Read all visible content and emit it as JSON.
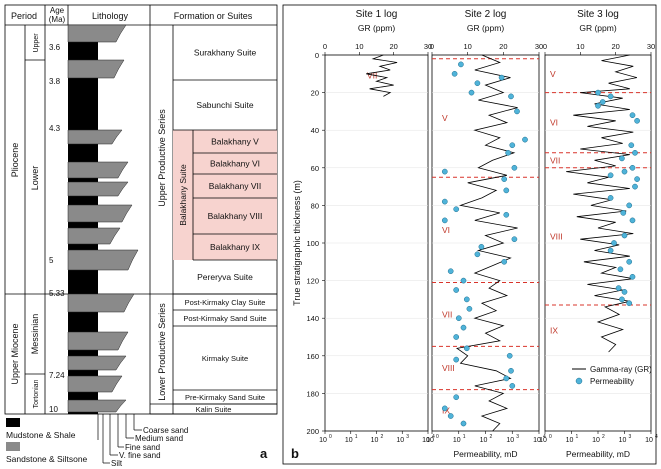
{
  "panel_a": {
    "label": "a",
    "headers": {
      "period": "Period",
      "age": "Age\n(Ma)",
      "lithology": "Lithology",
      "formation": "Formation or Suites"
    },
    "periods": {
      "pliocene": "Pliocene",
      "upper_miocene": "Upper Miocene"
    },
    "epochs": {
      "upper": "Upper",
      "lower": "Lower",
      "messinian": "Messinian",
      "tortonian": "Tortonian"
    },
    "ages": [
      "3.6",
      "3.8",
      "4.3",
      "5",
      "5.33",
      "7.24",
      "10"
    ],
    "series": {
      "upper": "Upper Productive Series",
      "lower": "Lower Productive Series",
      "balakhany": "Balakhany Suite"
    },
    "suites": [
      "Surakhany Suite",
      "Sabunchi Suite",
      "Balakhany V",
      "Balakhany VI",
      "Balakhany VII",
      "Balakhany VIII",
      "Balakhany IX",
      "Pereryva Suite",
      "Post-Kirmaky Clay Suite",
      "Post-Kirmaky Sand Suite",
      "Kirmaky Suite",
      "Pre-Kirmaky Sand Suite",
      "Kalin Suite"
    ],
    "legend": {
      "mudstone": "Mudstone & Shale",
      "sandstone": "Sandstone & Siltsone"
    },
    "grain_labels": [
      "Coarse sand",
      "Medium sand",
      "Fine sand",
      "V. fine sand",
      "Silt"
    ],
    "colors": {
      "mud": "#000000",
      "sand": "#8a8a8a",
      "highlight": "#f7d3cf"
    }
  },
  "panel_b": {
    "label": "b",
    "site_titles": [
      "Site 1 log",
      "Site 2 log",
      "Site 3 log"
    ],
    "gr_label": "GR (ppm)",
    "perm_label": "Permeability, mD",
    "y_label": "True stratigraphic thickness (m)",
    "legend": {
      "gr": "Gamma-ray (GR)",
      "perm": "Permeability"
    },
    "gr_ticks": [
      "0",
      "10",
      "20",
      "30"
    ],
    "perm_ticks": [
      "10",
      "10",
      "10",
      "10",
      "10"
    ],
    "perm_exps": [
      "0",
      "1",
      "2",
      "3",
      "4"
    ],
    "y_ticks": [
      "0",
      "20",
      "40",
      "60",
      "80",
      "100",
      "120",
      "140",
      "160",
      "180",
      "200"
    ],
    "colors": {
      "gr_line": "#000000",
      "perm_marker": "#4fb3d9",
      "boundary": "#d9342b",
      "unit_label": "#c0392b"
    }
  },
  "chart_data": [
    {
      "type": "line",
      "title": "Site 1 log",
      "xlabel": "GR (ppm)",
      "ylabel": "True stratigraphic thickness (m)",
      "xlim": [
        0,
        30
      ],
      "ylim": [
        200,
        0
      ],
      "grid": "horizontal",
      "units": [
        {
          "name": "VII",
          "top": 0,
          "bottom": 22
        }
      ],
      "boundaries": [],
      "series": [
        {
          "gr": [
            [
              17,
              0
            ],
            [
              14,
              2
            ],
            [
              21,
              4
            ],
            [
              16,
              6
            ],
            [
              19,
              8
            ],
            [
              12,
              10
            ],
            [
              18,
              12
            ],
            [
              15,
              14
            ],
            [
              20,
              16
            ],
            [
              13,
              18
            ],
            [
              19,
              20
            ],
            [
              17,
              22
            ]
          ]
        },
        {
          "perm": []
        }
      ]
    },
    {
      "type": "line",
      "title": "Site 2 log",
      "xlabel": "GR (ppm)",
      "ylabel": "True stratigraphic thickness (m)",
      "xlim": [
        0,
        30
      ],
      "ylim": [
        200,
        0
      ],
      "grid": "horizontal",
      "units": [
        {
          "name": "V",
          "top": 2,
          "bottom": 65
        },
        {
          "name": "VI",
          "top": 65,
          "bottom": 121
        },
        {
          "name": "VII",
          "top": 121,
          "bottom": 155
        },
        {
          "name": "VIII",
          "top": 155,
          "bottom": 178
        },
        {
          "name": "IX",
          "top": 178,
          "bottom": 200
        }
      ],
      "boundaries": [
        2,
        65,
        121,
        155,
        178
      ],
      "series": [
        {
          "gr": [
            [
              14,
              0
            ],
            [
              19,
              4
            ],
            [
              12,
              8
            ],
            [
              22,
              12
            ],
            [
              15,
              16
            ],
            [
              20,
              20
            ],
            [
              13,
              24
            ],
            [
              24,
              28
            ],
            [
              16,
              32
            ],
            [
              21,
              36
            ],
            [
              12,
              40
            ],
            [
              19,
              44
            ],
            [
              15,
              48
            ],
            [
              23,
              52
            ],
            [
              17,
              56
            ],
            [
              13,
              60
            ],
            [
              21,
              64
            ],
            [
              10,
              68
            ],
            [
              18,
              72
            ],
            [
              14,
              76
            ],
            [
              8,
              80
            ],
            [
              19,
              84
            ],
            [
              12,
              88
            ],
            [
              24,
              92
            ],
            [
              15,
              96
            ],
            [
              20,
              100
            ],
            [
              13,
              104
            ],
            [
              22,
              108
            ],
            [
              17,
              112
            ],
            [
              12,
              116
            ],
            [
              19,
              120
            ],
            [
              16,
              124
            ],
            [
              21,
              128
            ],
            [
              14,
              132
            ],
            [
              18,
              136
            ],
            [
              12,
              140
            ],
            [
              20,
              144
            ],
            [
              15,
              148
            ],
            [
              19,
              152
            ],
            [
              7,
              156
            ],
            [
              10,
              160
            ],
            [
              8,
              164
            ],
            [
              18,
              168
            ],
            [
              22,
              172
            ],
            [
              12,
              176
            ],
            [
              20,
              180
            ],
            [
              16,
              184
            ],
            [
              21,
              188
            ],
            [
              14,
              192
            ],
            [
              19,
              196
            ],
            [
              17,
              200
            ]
          ]
        },
        {
          "perm": [
            [
              12,
              5
            ],
            [
              7,
              10
            ],
            [
              400,
              12
            ],
            [
              50,
              15
            ],
            [
              30,
              20
            ],
            [
              900,
              22
            ],
            [
              1500,
              30
            ],
            [
              3000,
              45
            ],
            [
              1000,
              48
            ],
            [
              700,
              52
            ],
            [
              1200,
              60
            ],
            [
              3,
              62
            ],
            [
              500,
              66
            ],
            [
              600,
              72
            ],
            [
              3,
              78
            ],
            [
              8,
              82
            ],
            [
              600,
              85
            ],
            [
              3,
              88
            ],
            [
              1200,
              98
            ],
            [
              70,
              102
            ],
            [
              50,
              106
            ],
            [
              500,
              110
            ],
            [
              5,
              115
            ],
            [
              15,
              120
            ],
            [
              8,
              125
            ],
            [
              20,
              130
            ],
            [
              25,
              135
            ],
            [
              10,
              140
            ],
            [
              15,
              145
            ],
            [
              8,
              150
            ],
            [
              20,
              156
            ],
            [
              800,
              160
            ],
            [
              8,
              162
            ],
            [
              900,
              168
            ],
            [
              600,
              172
            ],
            [
              1000,
              176
            ],
            [
              8,
              182
            ],
            [
              3,
              188
            ],
            [
              5,
              192
            ],
            [
              15,
              196
            ]
          ]
        }
      ]
    },
    {
      "type": "line",
      "title": "Site 3 log",
      "xlabel": "GR (ppm)",
      "ylabel": "True stratigraphic thickness (m)",
      "xlim": [
        0,
        30
      ],
      "ylim": [
        200,
        0
      ],
      "grid": "horizontal",
      "units": [
        {
          "name": "V",
          "top": 0,
          "bottom": 20
        },
        {
          "name": "VI",
          "top": 20,
          "bottom": 52
        },
        {
          "name": "VII",
          "top": 52,
          "bottom": 60
        },
        {
          "name": "VIII",
          "top": 60,
          "bottom": 133
        },
        {
          "name": "IX",
          "top": 133,
          "bottom": 160
        }
      ],
      "boundaries": [
        20,
        52,
        60,
        133
      ],
      "series": [
        {
          "gr": [
            [
              24,
              0
            ],
            [
              16,
              3
            ],
            [
              25,
              6
            ],
            [
              20,
              9
            ],
            [
              26,
              12
            ],
            [
              18,
              15
            ],
            [
              24,
              18
            ],
            [
              10,
              20
            ],
            [
              22,
              23
            ],
            [
              14,
              26
            ],
            [
              24,
              29
            ],
            [
              8,
              32
            ],
            [
              20,
              35
            ],
            [
              12,
              38
            ],
            [
              25,
              41
            ],
            [
              16,
              44
            ],
            [
              22,
              47
            ],
            [
              10,
              50
            ],
            [
              24,
              53
            ],
            [
              14,
              56
            ],
            [
              20,
              59
            ],
            [
              6,
              62
            ],
            [
              18,
              65
            ],
            [
              12,
              68
            ],
            [
              24,
              71
            ],
            [
              8,
              74
            ],
            [
              19,
              77
            ],
            [
              13,
              80
            ],
            [
              23,
              83
            ],
            [
              9,
              86
            ],
            [
              20,
              89
            ],
            [
              15,
              92
            ],
            [
              25,
              95
            ],
            [
              10,
              98
            ],
            [
              21,
              101
            ],
            [
              14,
              104
            ],
            [
              24,
              107
            ],
            [
              11,
              110
            ],
            [
              20,
              113
            ],
            [
              16,
              116
            ],
            [
              25,
              119
            ],
            [
              12,
              122
            ],
            [
              22,
              125
            ],
            [
              14,
              128
            ],
            [
              24,
              131
            ],
            [
              17,
              134
            ],
            [
              21,
              138
            ],
            [
              15,
              142
            ],
            [
              22,
              146
            ],
            [
              16,
              150
            ],
            [
              20,
              154
            ],
            [
              18,
              158
            ]
          ]
        },
        {
          "perm": [
            [
              100,
              20
            ],
            [
              300,
              22
            ],
            [
              150,
              25
            ],
            [
              100,
              27
            ],
            [
              2000,
              32
            ],
            [
              3000,
              35
            ],
            [
              1800,
              48
            ],
            [
              2500,
              52
            ],
            [
              800,
              55
            ],
            [
              2000,
              60
            ],
            [
              1000,
              62
            ],
            [
              300,
              64
            ],
            [
              3000,
              66
            ],
            [
              2500,
              70
            ],
            [
              300,
              76
            ],
            [
              1500,
              80
            ],
            [
              900,
              84
            ],
            [
              2000,
              88
            ],
            [
              1000,
              96
            ],
            [
              400,
              100
            ],
            [
              300,
              104
            ],
            [
              1500,
              110
            ],
            [
              700,
              114
            ],
            [
              2000,
              118
            ],
            [
              600,
              124
            ],
            [
              1000,
              126
            ],
            [
              800,
              130
            ],
            [
              1500,
              132
            ]
          ]
        }
      ]
    }
  ]
}
